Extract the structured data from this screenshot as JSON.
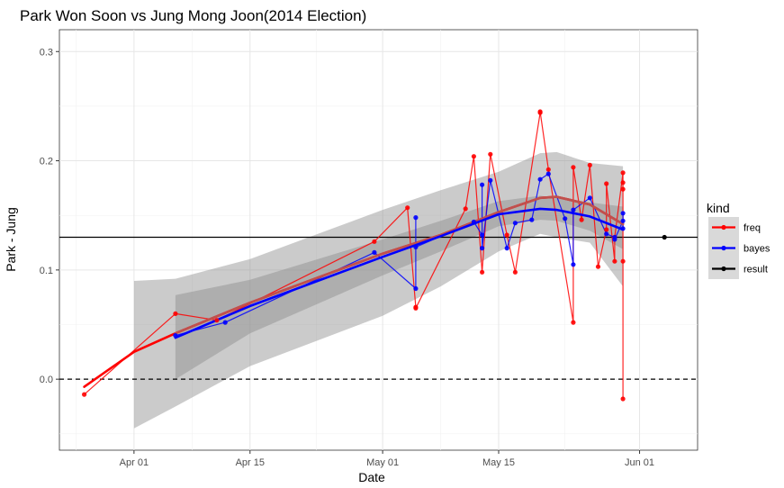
{
  "chart_data": {
    "type": "line",
    "title": "Park Won Soon vs Jung Mong Joon(2014 Election)",
    "xlabel": "Date",
    "ylabel": "Park - Jung",
    "x_ticks": [
      "2014-04-01",
      "2014-04-15",
      "2014-05-01",
      "2014-05-15",
      "2014-06-01"
    ],
    "x_tick_labels": [
      "Apr 01",
      "Apr 15",
      "May 01",
      "May 15",
      "Jun 01"
    ],
    "y_ticks": [
      0.0,
      0.1,
      0.2,
      0.3
    ],
    "y_tick_labels": [
      "0.0",
      "0.1",
      "0.2",
      "0.3"
    ],
    "xlim": [
      "2014-03-23",
      "2014-06-08"
    ],
    "ylim": [
      -0.065,
      0.32
    ],
    "grid": true,
    "reference_lines": [
      {
        "kind": "solid",
        "y": 0.13
      },
      {
        "kind": "dashed",
        "y": 0.0
      }
    ],
    "legend": {
      "title": "kind",
      "placement": "right",
      "entries": [
        "freq",
        "bayes",
        "result"
      ]
    },
    "colors": {
      "freq": "#ff0000",
      "bayes": "#0000ff",
      "result": "#000000",
      "freq_smooth": "#c0504d",
      "panel": "#ffffff",
      "ribbon": "#8c8c8c"
    },
    "series": [
      {
        "name": "freq",
        "points": [
          [
            "2014-03-26",
            -0.014
          ],
          [
            "2014-04-06",
            0.06
          ],
          [
            "2014-04-11",
            0.054
          ],
          [
            "2014-04-30",
            0.126
          ],
          [
            "2014-05-04",
            0.157
          ],
          [
            "2014-05-05",
            0.066
          ],
          [
            "2014-05-05",
            0.065
          ],
          [
            "2014-05-11",
            0.156
          ],
          [
            "2014-05-12",
            0.204
          ],
          [
            "2014-05-13",
            0.098
          ],
          [
            "2014-05-14",
            0.206
          ],
          [
            "2014-05-16",
            0.132
          ],
          [
            "2014-05-17",
            0.098
          ],
          [
            "2014-05-20",
            0.244
          ],
          [
            "2014-05-20",
            0.245
          ],
          [
            "2014-05-21",
            0.192
          ],
          [
            "2014-05-24",
            0.052
          ],
          [
            "2014-05-24",
            0.194
          ],
          [
            "2014-05-25",
            0.146
          ],
          [
            "2014-05-26",
            0.196
          ],
          [
            "2014-05-27",
            0.103
          ],
          [
            "2014-05-28",
            0.137
          ],
          [
            "2014-05-28",
            0.179
          ],
          [
            "2014-05-29",
            0.108
          ],
          [
            "2014-05-29",
            0.13
          ],
          [
            "2014-05-30",
            0.189
          ],
          [
            "2014-05-30",
            0.18
          ],
          [
            "2014-05-30",
            0.174
          ],
          [
            "2014-05-30",
            0.108
          ],
          [
            "2014-05-30",
            -0.018
          ]
        ]
      },
      {
        "name": "bayes",
        "points": [
          [
            "2014-04-06",
            0.04
          ],
          [
            "2014-04-12",
            0.052
          ],
          [
            "2014-04-30",
            0.116
          ],
          [
            "2014-05-05",
            0.083
          ],
          [
            "2014-05-05",
            0.148
          ],
          [
            "2014-05-05",
            0.121
          ],
          [
            "2014-05-12",
            0.144
          ],
          [
            "2014-05-13",
            0.132
          ],
          [
            "2014-05-13",
            0.178
          ],
          [
            "2014-05-13",
            0.12
          ],
          [
            "2014-05-14",
            0.182
          ],
          [
            "2014-05-16",
            0.12
          ],
          [
            "2014-05-17",
            0.143
          ],
          [
            "2014-05-19",
            0.146
          ],
          [
            "2014-05-20",
            0.183
          ],
          [
            "2014-05-21",
            0.188
          ],
          [
            "2014-05-23",
            0.147
          ],
          [
            "2014-05-24",
            0.105
          ],
          [
            "2014-05-24",
            0.155
          ],
          [
            "2014-05-26",
            0.166
          ],
          [
            "2014-05-28",
            0.133
          ],
          [
            "2014-05-29",
            0.13
          ],
          [
            "2014-05-29",
            0.128
          ],
          [
            "2014-05-30",
            0.145
          ],
          [
            "2014-05-30",
            0.152
          ],
          [
            "2014-05-30",
            0.138
          ]
        ]
      },
      {
        "name": "result",
        "points": [
          [
            "2014-06-04",
            0.13
          ]
        ]
      }
    ],
    "smooth_lines": [
      {
        "name": "freq",
        "points": [
          [
            "2014-03-26",
            -0.007
          ],
          [
            "2014-04-01",
            0.025
          ],
          [
            "2014-04-06",
            0.042
          ],
          [
            "2014-04-15",
            0.07
          ],
          [
            "2014-05-01",
            0.115
          ],
          [
            "2014-05-08",
            0.132
          ],
          [
            "2014-05-15",
            0.153
          ],
          [
            "2014-05-20",
            0.166
          ],
          [
            "2014-05-22",
            0.167
          ],
          [
            "2014-05-26",
            0.16
          ],
          [
            "2014-05-30",
            0.142
          ]
        ]
      },
      {
        "name": "bayes",
        "points": [
          [
            "2014-04-06",
            0.038
          ],
          [
            "2014-04-15",
            0.067
          ],
          [
            "2014-05-01",
            0.112
          ],
          [
            "2014-05-08",
            0.131
          ],
          [
            "2014-05-15",
            0.151
          ],
          [
            "2014-05-20",
            0.156
          ],
          [
            "2014-05-22",
            0.155
          ],
          [
            "2014-05-26",
            0.149
          ],
          [
            "2014-05-30",
            0.137
          ]
        ]
      }
    ],
    "confidence_bands": [
      {
        "name": "freq",
        "x": [
          "2014-04-01",
          "2014-04-06",
          "2014-04-15",
          "2014-05-01",
          "2014-05-08",
          "2014-05-15",
          "2014-05-20",
          "2014-05-22",
          "2014-05-26",
          "2014-05-30"
        ],
        "lower": [
          -0.045,
          -0.025,
          0.012,
          0.058,
          0.085,
          0.117,
          0.133,
          0.13,
          0.125,
          0.085
        ],
        "upper": [
          0.09,
          0.092,
          0.11,
          0.155,
          0.173,
          0.19,
          0.207,
          0.208,
          0.198,
          0.195
        ]
      },
      {
        "name": "bayes",
        "x": [
          "2014-04-06",
          "2014-04-15",
          "2014-05-01",
          "2014-05-08",
          "2014-05-15",
          "2014-05-20",
          "2014-05-22",
          "2014-05-26",
          "2014-05-30"
        ],
        "lower": [
          0.0,
          0.042,
          0.095,
          0.117,
          0.14,
          0.146,
          0.145,
          0.136,
          0.119
        ],
        "upper": [
          0.077,
          0.091,
          0.128,
          0.145,
          0.163,
          0.168,
          0.166,
          0.162,
          0.158
        ]
      }
    ]
  }
}
